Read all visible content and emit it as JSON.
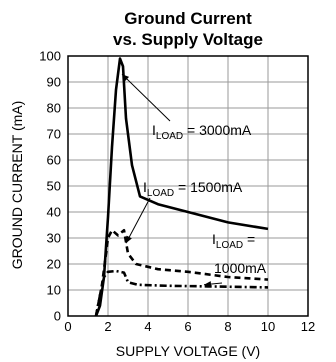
{
  "chart_data": {
    "type": "line",
    "title": [
      "Ground Current",
      "vs. Supply Voltage"
    ],
    "xlabel": "SUPPLY VOLTAGE (V)",
    "ylabel": "GROUND CURRENT (mA)",
    "xlim": [
      0,
      12
    ],
    "ylim": [
      0,
      100
    ],
    "xticks": [
      0,
      2,
      4,
      6,
      8,
      10,
      12
    ],
    "yticks": [
      0,
      10,
      20,
      30,
      40,
      50,
      60,
      70,
      80,
      90,
      100
    ],
    "grid": true,
    "series": [
      {
        "name": "I_LOAD = 3000mA",
        "style": "solid",
        "points": [
          [
            1.4,
            0
          ],
          [
            1.6,
            4
          ],
          [
            1.8,
            15
          ],
          [
            2.0,
            38
          ],
          [
            2.2,
            65
          ],
          [
            2.4,
            87
          ],
          [
            2.6,
            99
          ],
          [
            2.75,
            96
          ],
          [
            2.9,
            76
          ],
          [
            3.2,
            58
          ],
          [
            3.6,
            46
          ],
          [
            4.5,
            43
          ],
          [
            6,
            40
          ],
          [
            8,
            36
          ],
          [
            10,
            33.5
          ]
        ]
      },
      {
        "name": "I_LOAD = 1500mA",
        "style": "dashed",
        "points": [
          [
            1.4,
            0
          ],
          [
            1.7,
            12
          ],
          [
            2.0,
            30
          ],
          [
            2.2,
            33
          ],
          [
            2.5,
            31
          ],
          [
            2.8,
            33
          ],
          [
            3.0,
            24
          ],
          [
            3.4,
            20
          ],
          [
            4.5,
            18
          ],
          [
            6,
            17
          ],
          [
            8,
            15
          ],
          [
            10,
            14
          ]
        ]
      },
      {
        "name": "I_LOAD = 1000mA",
        "style": "dashdot",
        "points": [
          [
            1.4,
            0
          ],
          [
            1.6,
            8
          ],
          [
            1.8,
            15
          ],
          [
            2.0,
            17
          ],
          [
            2.4,
            17.3
          ],
          [
            2.8,
            16.7
          ],
          [
            3.0,
            13
          ],
          [
            3.5,
            12
          ],
          [
            5,
            11.6
          ],
          [
            7,
            11.4
          ],
          [
            10,
            11
          ]
        ]
      }
    ],
    "annotations": [
      {
        "id": "3000",
        "prefix": "I",
        "sub": "LOAD",
        "suffix": " = 3000mA",
        "arrow_to": [
          2.7,
          93
        ]
      },
      {
        "id": "1500",
        "prefix": "I",
        "sub": "LOAD",
        "suffix": " = 1500mA",
        "arrow_to": [
          2.9,
          28
        ]
      },
      {
        "id": "1000",
        "prefix": "I",
        "sub": "LOAD",
        "suffix": " =",
        "line2": "1000mA",
        "arrow_to": [
          6.8,
          12
        ]
      }
    ],
    "line_color": "#000000",
    "grid_color": "#9a9a9a"
  }
}
